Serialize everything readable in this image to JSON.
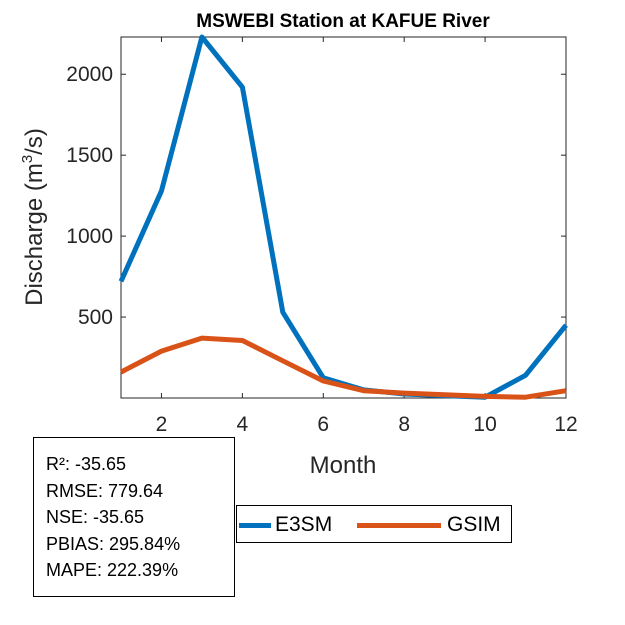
{
  "chart_data": {
    "type": "line",
    "title": "MSWEBI  Station at  KAFUE  River",
    "xlabel": "Month",
    "ylabel_prefix": "Discharge (m",
    "ylabel_sup": "3",
    "ylabel_suffix": "/s)",
    "xlim": [
      1,
      12
    ],
    "ylim": [
      0,
      2230
    ],
    "xticks": [
      2,
      4,
      6,
      8,
      10,
      12
    ],
    "yticks": [
      500,
      1000,
      1500,
      2000
    ],
    "x": [
      1,
      2,
      3,
      4,
      5,
      6,
      7,
      8,
      9,
      10,
      11,
      12
    ],
    "series": [
      {
        "name": "E3SM",
        "color": "#0072BD",
        "values": [
          720,
          1280,
          2230,
          1920,
          530,
          125,
          50,
          25,
          15,
          5,
          140,
          450
        ]
      },
      {
        "name": "GSIM",
        "color": "#D95319",
        "values": [
          160,
          290,
          370,
          355,
          230,
          105,
          45,
          30,
          20,
          10,
          5,
          45
        ]
      }
    ]
  },
  "stats": {
    "r2": "R²: -35.65",
    "rmse": "RMSE: 779.64",
    "nse": "NSE: -35.65",
    "pbias": "PBIAS: 295.84%",
    "mape": "MAPE: 222.39%"
  },
  "legend": {
    "e3sm_label": "E3SM",
    "gsim_label": "GSIM"
  }
}
